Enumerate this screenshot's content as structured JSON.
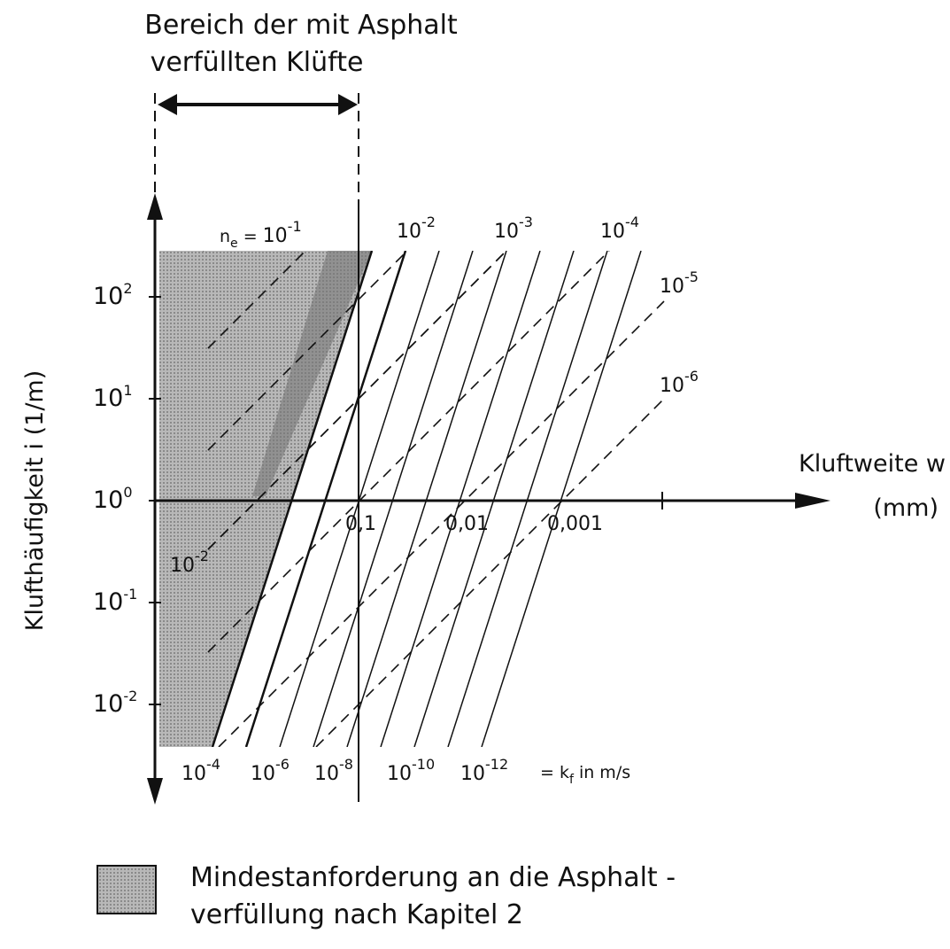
{
  "header": {
    "line1": "Bereich der mit Asphalt",
    "line2": "verfüllten Klüfte"
  },
  "y_axis": {
    "label": "Klufthäufigkeit i (1/m)",
    "ticks": [
      {
        "base": "10",
        "exp": "2"
      },
      {
        "base": "10",
        "exp": "1"
      },
      {
        "base": "10",
        "exp": "0"
      },
      {
        "base": "10",
        "exp": "-1"
      },
      {
        "base": "10",
        "exp": "-2"
      }
    ]
  },
  "x_axis": {
    "label": "Kluftweite  w",
    "unit": "(mm)",
    "ticks": [
      "0,1",
      "0,01",
      "0,001"
    ]
  },
  "ne_lines": {
    "prefix": "n",
    "sub": "e",
    "eq": " = ",
    "labels": [
      {
        "base": "10",
        "exp": "-1"
      },
      {
        "base": "10",
        "exp": "-2"
      },
      {
        "base": "10",
        "exp": "-3"
      },
      {
        "base": "10",
        "exp": "-4"
      },
      {
        "base": "10",
        "exp": "-5"
      },
      {
        "base": "10",
        "exp": "-6"
      }
    ]
  },
  "kf_lines": {
    "labels": [
      {
        "base": "10",
        "exp": "-4"
      },
      {
        "base": "10",
        "exp": "-6"
      },
      {
        "base": "10",
        "exp": "-8"
      },
      {
        "base": "10",
        "exp": "-10"
      },
      {
        "base": "10",
        "exp": "-12"
      }
    ],
    "suffix": "= k",
    "sub": "f",
    "unit": " in  m/s"
  },
  "inner_label": {
    "base": "10",
    "exp": "-2"
  },
  "legend": {
    "line1": "Mindestanforderung an die Asphalt -",
    "line2": "verfüllung nach Kapitel 2"
  }
}
